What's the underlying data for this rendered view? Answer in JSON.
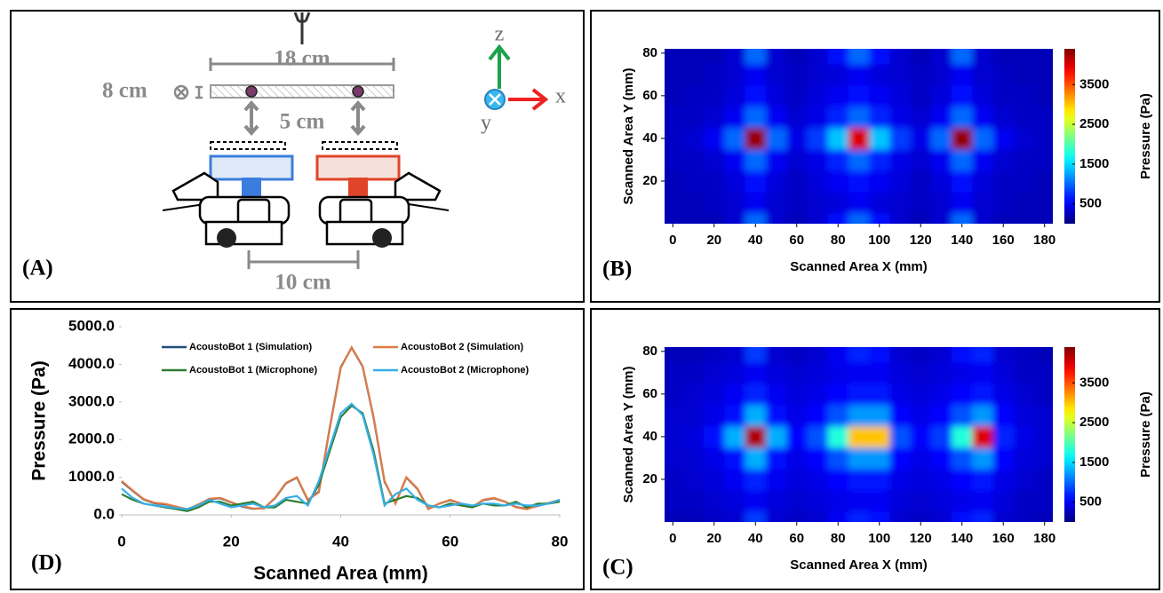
{
  "diagram": {
    "panel_label": "(A)",
    "width_label": "18 cm",
    "depth_label": "8 cm",
    "gap_label": "5 cm",
    "spacing_label": "10 cm",
    "axis_z": "z",
    "axis_x": "x",
    "axis_y": "y"
  },
  "chart_data": [
    {
      "type": "heatmap",
      "panel_label": "(B)",
      "x_label": "Scanned Area X (mm)",
      "y_label": "Scanned Area Y (mm)",
      "colorbar_label": "Pressure (Pa)",
      "colormap": "jet",
      "x": [
        0,
        10,
        20,
        30,
        40,
        50,
        60,
        70,
        80,
        90,
        100,
        110,
        120,
        130,
        140,
        150,
        160,
        170,
        180
      ],
      "y": [
        0,
        10,
        20,
        30,
        40,
        50,
        60,
        70,
        80
      ],
      "values": [
        [
          250,
          250,
          250,
          350,
          1000,
          350,
          250,
          350,
          600,
          1000,
          600,
          350,
          250,
          350,
          1000,
          350,
          250,
          250,
          250
        ],
        [
          250,
          250,
          300,
          350,
          500,
          350,
          300,
          350,
          400,
          500,
          400,
          350,
          300,
          350,
          500,
          350,
          300,
          250,
          250
        ],
        [
          250,
          300,
          300,
          400,
          600,
          400,
          300,
          400,
          500,
          600,
          500,
          400,
          300,
          400,
          600,
          400,
          300,
          300,
          250
        ],
        [
          300,
          300,
          350,
          500,
          1000,
          500,
          350,
          450,
          700,
          1000,
          700,
          450,
          350,
          500,
          1000,
          500,
          350,
          300,
          300
        ],
        [
          300,
          350,
          500,
          1000,
          4300,
          1000,
          450,
          800,
          1400,
          4000,
          1400,
          800,
          450,
          1000,
          4300,
          1000,
          500,
          350,
          300
        ],
        [
          300,
          300,
          350,
          500,
          1000,
          500,
          350,
          450,
          700,
          1000,
          700,
          450,
          350,
          500,
          1000,
          500,
          350,
          300,
          300
        ],
        [
          250,
          300,
          300,
          400,
          600,
          400,
          300,
          400,
          500,
          600,
          500,
          400,
          300,
          400,
          600,
          400,
          300,
          300,
          250
        ],
        [
          250,
          250,
          300,
          350,
          500,
          350,
          300,
          350,
          400,
          500,
          400,
          350,
          300,
          350,
          500,
          350,
          300,
          250,
          250
        ],
        [
          250,
          250,
          250,
          350,
          1000,
          350,
          250,
          350,
          600,
          1000,
          600,
          350,
          250,
          350,
          1000,
          350,
          250,
          250,
          250
        ]
      ],
      "xlim": [
        -4,
        184
      ],
      "ylim": [
        0,
        82
      ],
      "xticks": [
        0,
        20,
        40,
        60,
        80,
        100,
        120,
        140,
        160,
        180
      ],
      "yticks": [
        20,
        40,
        60,
        80
      ],
      "zlim": [
        0,
        4400
      ],
      "zticks": [
        500,
        1500,
        2500,
        3500
      ]
    },
    {
      "type": "heatmap",
      "panel_label": "(C)",
      "x_label": "Scanned Area X (mm)",
      "y_label": "Scanned Area Y (mm)",
      "colorbar_label": "Pressure (Pa)",
      "colormap": "jet",
      "x": [
        0,
        10,
        20,
        30,
        40,
        50,
        60,
        70,
        80,
        90,
        100,
        110,
        120,
        130,
        140,
        150,
        160,
        170,
        180
      ],
      "y": [
        0,
        10,
        20,
        30,
        40,
        50,
        60,
        70,
        80
      ],
      "values": [
        [
          250,
          250,
          300,
          350,
          800,
          350,
          300,
          350,
          500,
          700,
          600,
          350,
          300,
          350,
          600,
          700,
          350,
          300,
          250
        ],
        [
          300,
          300,
          350,
          400,
          500,
          400,
          350,
          400,
          450,
          500,
          500,
          400,
          350,
          400,
          450,
          500,
          400,
          300,
          300
        ],
        [
          300,
          350,
          400,
          500,
          700,
          500,
          400,
          450,
          550,
          650,
          650,
          450,
          400,
          450,
          550,
          650,
          450,
          350,
          300
        ],
        [
          350,
          350,
          450,
          600,
          1300,
          600,
          450,
          550,
          900,
          1200,
          1200,
          550,
          450,
          550,
          900,
          1200,
          550,
          400,
          350
        ],
        [
          350,
          400,
          600,
          1300,
          4200,
          1300,
          550,
          900,
          1800,
          3000,
          3000,
          900,
          550,
          800,
          1800,
          4000,
          700,
          450,
          350
        ],
        [
          350,
          350,
          450,
          600,
          1300,
          600,
          450,
          550,
          900,
          1200,
          1200,
          550,
          450,
          550,
          900,
          1200,
          550,
          400,
          350
        ],
        [
          300,
          350,
          400,
          500,
          700,
          500,
          400,
          450,
          550,
          650,
          650,
          450,
          400,
          450,
          550,
          650,
          450,
          350,
          300
        ],
        [
          300,
          300,
          350,
          400,
          500,
          400,
          350,
          400,
          450,
          500,
          500,
          400,
          350,
          400,
          450,
          500,
          400,
          300,
          300
        ],
        [
          250,
          250,
          300,
          350,
          800,
          350,
          300,
          350,
          500,
          700,
          600,
          350,
          300,
          350,
          600,
          700,
          350,
          300,
          250
        ]
      ],
      "xlim": [
        -4,
        184
      ],
      "ylim": [
        0,
        82
      ],
      "xticks": [
        0,
        20,
        40,
        60,
        80,
        100,
        120,
        140,
        160,
        180
      ],
      "yticks": [
        20,
        40,
        60,
        80
      ],
      "zlim": [
        0,
        4400
      ],
      "zticks": [
        500,
        1500,
        2500,
        3500
      ]
    },
    {
      "type": "line",
      "panel_label": "(D)",
      "x_label": "Scanned Area (mm)",
      "y_label": "Pressure (Pa)",
      "x": [
        0,
        2,
        4,
        6,
        8,
        10,
        12,
        14,
        16,
        18,
        20,
        22,
        24,
        26,
        28,
        30,
        32,
        34,
        36,
        38,
        40,
        42,
        44,
        46,
        48,
        50,
        52,
        54,
        56,
        58,
        60,
        62,
        64,
        66,
        68,
        70,
        72,
        74,
        76,
        78,
        80
      ],
      "series": [
        {
          "name": "AcoustoBot 1 (Simulation)",
          "color": "#1f4e79",
          "values": [
            880,
            640,
            410,
            310,
            280,
            210,
            150,
            270,
            420,
            440,
            330,
            220,
            160,
            180,
            440,
            840,
            990,
            390,
            620,
            2320,
            3920,
            4440,
            3940,
            2580,
            880,
            310,
            990,
            690,
            160,
            300,
            390,
            300,
            210,
            390,
            440,
            350,
            210,
            160,
            240,
            310,
            390
          ]
        },
        {
          "name": "AcoustoBot 2 (Simulation)",
          "color": "#e07b45",
          "values": [
            900,
            650,
            420,
            320,
            290,
            220,
            140,
            280,
            430,
            450,
            340,
            230,
            170,
            170,
            450,
            850,
            1000,
            400,
            600,
            2300,
            3900,
            4450,
            3950,
            2600,
            900,
            300,
            1000,
            700,
            150,
            300,
            400,
            300,
            200,
            400,
            450,
            350,
            200,
            150,
            250,
            320,
            400
          ]
        },
        {
          "name": "AcoustoBot 1 (Microphone)",
          "color": "#2e7d32",
          "values": [
            550,
            400,
            300,
            250,
            200,
            150,
            100,
            200,
            350,
            350,
            250,
            300,
            350,
            200,
            200,
            400,
            350,
            300,
            800,
            1700,
            2600,
            2900,
            2700,
            1700,
            300,
            400,
            500,
            450,
            250,
            200,
            300,
            250,
            200,
            300,
            250,
            250,
            350,
            200,
            300,
            300,
            350
          ]
        },
        {
          "name": "AcoustoBot 2 (Microphone)",
          "color": "#35aee6",
          "values": [
            700,
            450,
            300,
            250,
            220,
            180,
            150,
            250,
            400,
            300,
            200,
            250,
            300,
            200,
            250,
            450,
            500,
            250,
            900,
            1800,
            2700,
            2950,
            2650,
            1600,
            250,
            550,
            700,
            400,
            250,
            200,
            250,
            300,
            250,
            300,
            300,
            250,
            300,
            250,
            250,
            300,
            400
          ]
        }
      ],
      "xlim": [
        0,
        80
      ],
      "ylim": [
        0,
        5000
      ],
      "xticks": [
        0,
        20,
        40,
        60,
        80
      ],
      "yticks": [
        {
          "value": 0,
          "label": "0.0"
        },
        {
          "value": 1000,
          "label": "1000.0"
        },
        {
          "value": 2000,
          "label": "2000.0"
        },
        {
          "value": 3000,
          "label": "3000.0"
        },
        {
          "value": 4000,
          "label": "4000.0"
        },
        {
          "value": 5000,
          "label": "5000.0"
        }
      ]
    }
  ]
}
